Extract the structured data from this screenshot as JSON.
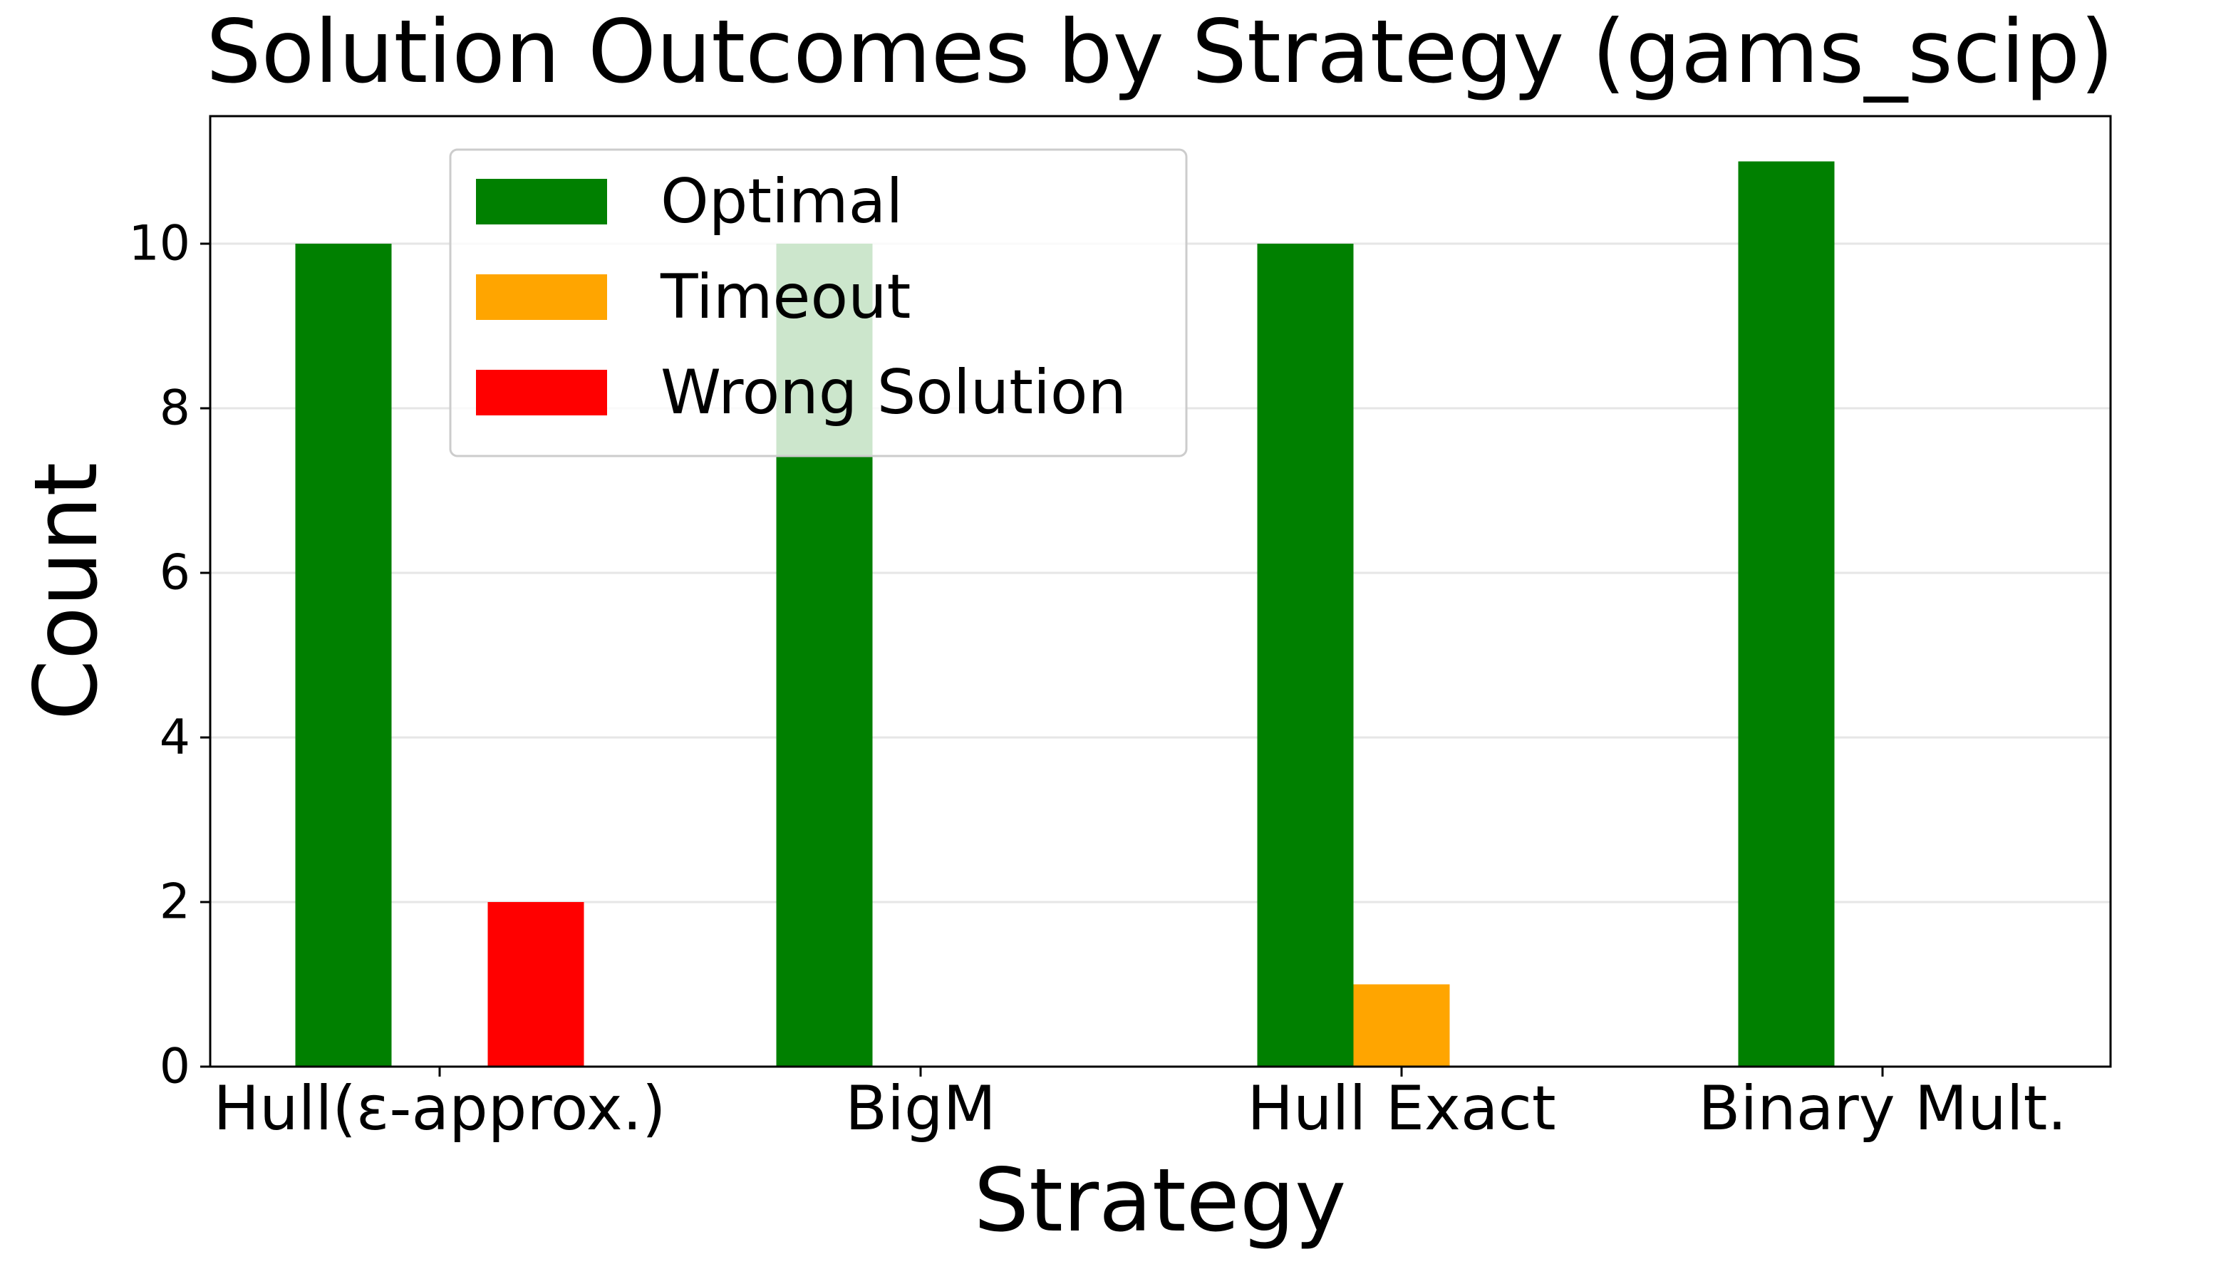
{
  "chart_data": {
    "type": "bar",
    "title": "Solution Outcomes by Strategy (gams_scip)",
    "xlabel": "Strategy",
    "ylabel": "Count",
    "categories": [
      "Hull(ε-approx.)",
      "BigM",
      "Hull Exact",
      "Binary Mult."
    ],
    "series": [
      {
        "name": "Optimal",
        "color": "#008000",
        "values": [
          10,
          10,
          10,
          11
        ]
      },
      {
        "name": "Timeout",
        "color": "#FFA500",
        "values": [
          0,
          0,
          1,
          0
        ]
      },
      {
        "name": "Wrong Solution",
        "color": "#FF0000",
        "values": [
          2,
          0,
          0,
          0
        ]
      }
    ],
    "ylim": [
      0,
      11.55
    ],
    "yticks": [
      0,
      2,
      4,
      6,
      8,
      10
    ],
    "grid": "y",
    "legend_position": "upper-left"
  }
}
